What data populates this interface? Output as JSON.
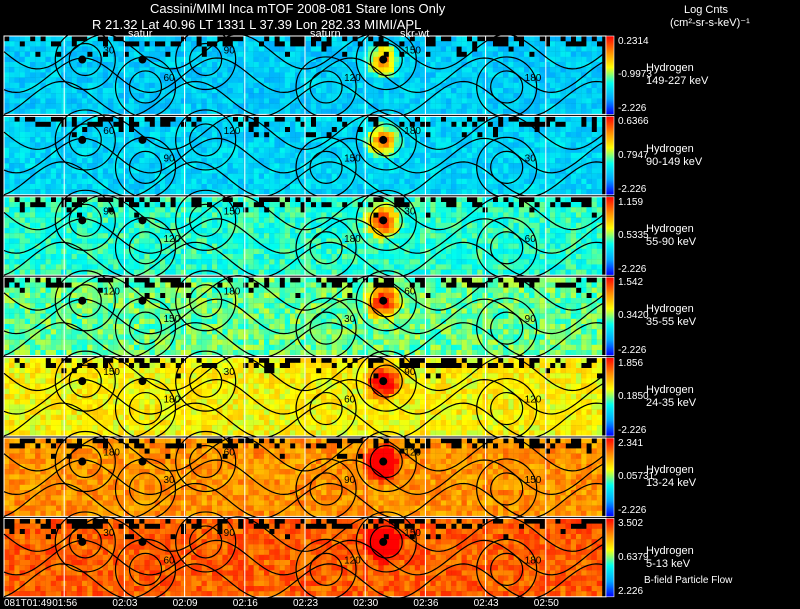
{
  "header": {
    "title": "Cassini/MIMI Inca mTOF  2008-081   Stare   Ions Only",
    "coords": "R      21.32 Lat 40.96 LT 1331 L       37.39 Lon      282.33   MIMI/APL",
    "targets": [
      "satur",
      "saturn",
      "skr-wt"
    ]
  },
  "colorbar_unit": {
    "line1": "Log Cnts",
    "line2": "(cm²-sr-s-keV)⁻¹"
  },
  "footnote": "B-field Particle Flow",
  "chart_data": {
    "type": "heatmap",
    "title": "Cassini/MIMI Inca mTOF  2008-081   Stare   Ions Only",
    "species": "Hydrogen",
    "colorbar_label": "Log Cnts (cm²-sr-s-keV)⁻¹",
    "time_ticks": [
      "081T01:49",
      "01:56",
      "02:03",
      "02:09",
      "02:16",
      "02:23",
      "02:30",
      "02:36",
      "02:43",
      "02:50"
    ],
    "panels_per_row": 10,
    "contour_levels": [
      30,
      60,
      90,
      120,
      150,
      180
    ],
    "rows": [
      {
        "label": "Hydrogen",
        "energy": "149-227 keV",
        "cmax": "0.2314",
        "cmid": "-0.9973",
        "cmin": "-2.226"
      },
      {
        "label": "Hydrogen",
        "energy": "90-149 keV",
        "cmax": "0.6366",
        "cmid": "0.7947",
        "cmin": "-2.226"
      },
      {
        "label": "Hydrogen",
        "energy": "55-90 keV",
        "cmax": "1.159",
        "cmid": "0.5335",
        "cmin": "-2.226"
      },
      {
        "label": "Hydrogen",
        "energy": "35-55 keV",
        "cmax": "1.542",
        "cmid": "0.3420",
        "cmin": "-2.226"
      },
      {
        "label": "Hydrogen",
        "energy": "24-35 keV",
        "cmax": "1.856",
        "cmid": "0.1850",
        "cmin": "-2.226"
      },
      {
        "label": "Hydrogen",
        "energy": "13-24 keV",
        "cmax": "2.341",
        "cmid": "0.05731",
        "cmin": "-2.226"
      },
      {
        "label": "Hydrogen",
        "energy": "5-13 keV",
        "cmax": "3.502",
        "cmid": "0.6379",
        "cmin": "2.226"
      }
    ]
  }
}
